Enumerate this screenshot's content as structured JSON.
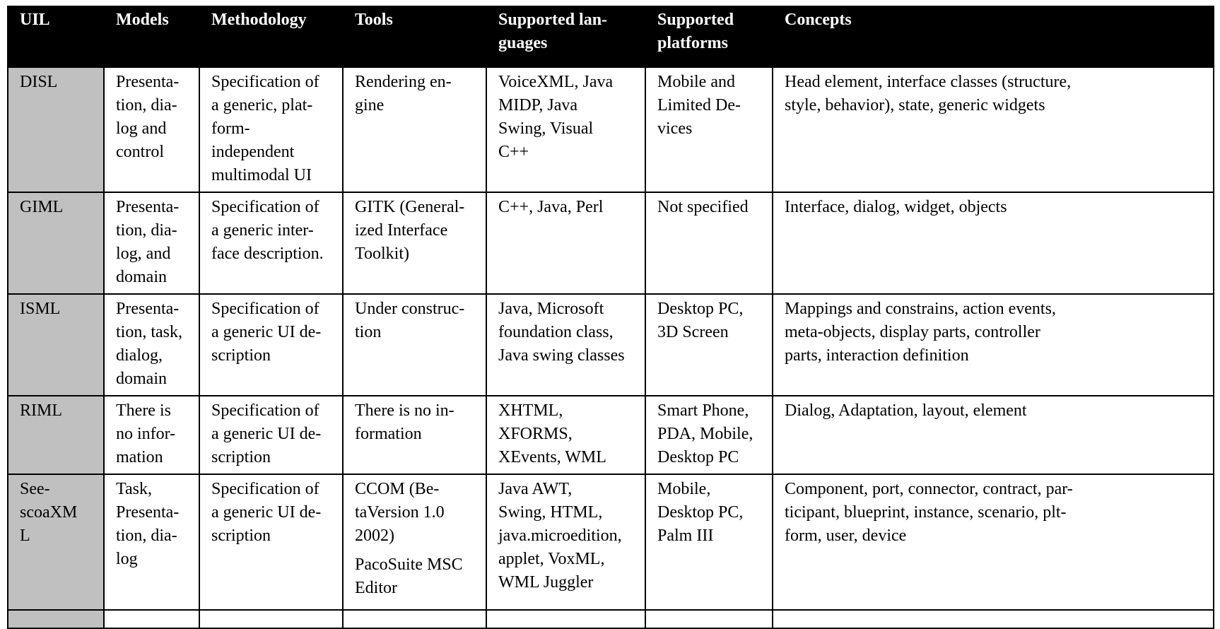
{
  "table": {
    "headers": [
      "UIL",
      "Models",
      "Methodology",
      "Tools",
      "Supported lan-\nguages",
      "Supported\nplatforms",
      "Concepts"
    ],
    "rows": [
      {
        "uil": "DISL",
        "models": "Presenta-\ntion, dia-\nlog and\ncontrol",
        "methodology": "Specification of\na generic, plat-\nform-\nindependent\nmultimodal UI",
        "tools": [
          "Rendering en-\ngine"
        ],
        "languages": "VoiceXML, Java\nMIDP, Java\nSwing, Visual\nC++",
        "platforms": "Mobile and\nLimited De-\nvices",
        "concepts": "Head element, interface classes (structure,\nstyle, behavior), state, generic widgets"
      },
      {
        "uil": "GIML",
        "models": "Presenta-\ntion, dia-\nlog, and\ndomain",
        "methodology": "Specification of\na generic inter-\nface description.",
        "tools": [
          "GITK (General-\nized Interface\nToolkit)"
        ],
        "languages": "C++, Java, Perl",
        "platforms": "Not specified",
        "concepts": "Interface, dialog, widget, objects"
      },
      {
        "uil": "ISML",
        "models": "Presenta-\ntion, task,\ndialog,\ndomain",
        "methodology": "Specification of\na generic UI de-\nscription",
        "tools": [
          "Under construc-\ntion"
        ],
        "languages": "Java, Microsoft\nfoundation class,\nJava swing classes",
        "platforms": "Desktop PC,\n3D Screen",
        "concepts": "Mappings and constrains, action events,\nmeta-objects, display parts, controller\nparts, interaction definition"
      },
      {
        "uil": "RIML",
        "models": "There is\nno infor-\nmation",
        "methodology": "Specification of\na generic UI de-\nscription",
        "tools": [
          "There is no in-\nformation"
        ],
        "languages": "XHTML,\nXFORMS,\nXEvents, WML",
        "platforms": "Smart Phone,\nPDA, Mobile,\nDesktop PC",
        "concepts": "Dialog, Adaptation, layout, element"
      },
      {
        "uil": "See-\nscoaXM\nL",
        "models": "Task,\nPresenta-\ntion, dia-\nlog",
        "methodology": "Specification of\na generic UI de-\nscription",
        "tools": [
          "CCOM (Be-\ntaVersion 1.0\n2002)",
          "PacoSuite MSC\nEditor"
        ],
        "languages": "Java AWT,\nSwing, HTML,\njava.microedition,\napplet, VoxML,\nWML Juggler",
        "platforms": "Mobile,\nDesktop PC,\nPalm III",
        "concepts": "Component, port, connector, contract, par-\nticipant, blueprint, instance, scenario, plt-\nform, user, device"
      }
    ]
  }
}
